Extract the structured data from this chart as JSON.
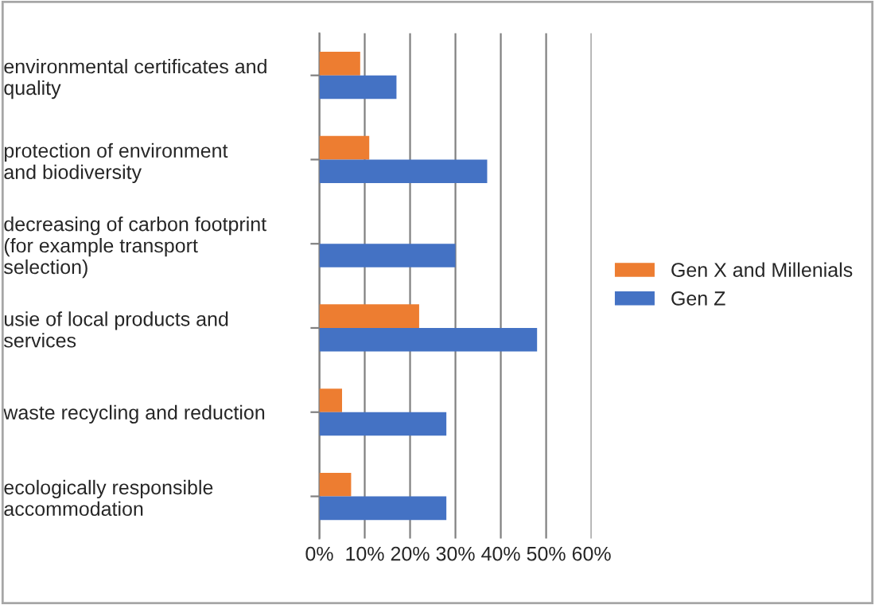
{
  "chart_data": {
    "type": "bar",
    "orientation": "horizontal",
    "categories": [
      "environmental certificates and\nquality",
      "protection of environment\nand biodiversity",
      "decreasing of carbon footprint\n(for example transport\nselection)",
      "usie of local products and\nservices",
      "waste recycling and reduction",
      "ecologically responsible\naccommodation"
    ],
    "series": [
      {
        "name": "Gen X and Millenials",
        "color": "#ed7d31",
        "values": [
          9,
          11,
          null,
          22,
          5,
          7
        ]
      },
      {
        "name": "Gen Z",
        "color": "#4472c4",
        "values": [
          17,
          37,
          30,
          48,
          28,
          28
        ]
      }
    ],
    "xlim": [
      0,
      60
    ],
    "xticks": [
      {
        "value": 0,
        "label": "0%"
      },
      {
        "value": 10,
        "label": "10%"
      },
      {
        "value": 20,
        "label": "20%"
      },
      {
        "value": 30,
        "label": "30%"
      },
      {
        "value": 40,
        "label": "40%"
      },
      {
        "value": 50,
        "label": "50%"
      },
      {
        "value": 60,
        "label": "60%"
      }
    ],
    "grid": "x",
    "legend": "right"
  }
}
